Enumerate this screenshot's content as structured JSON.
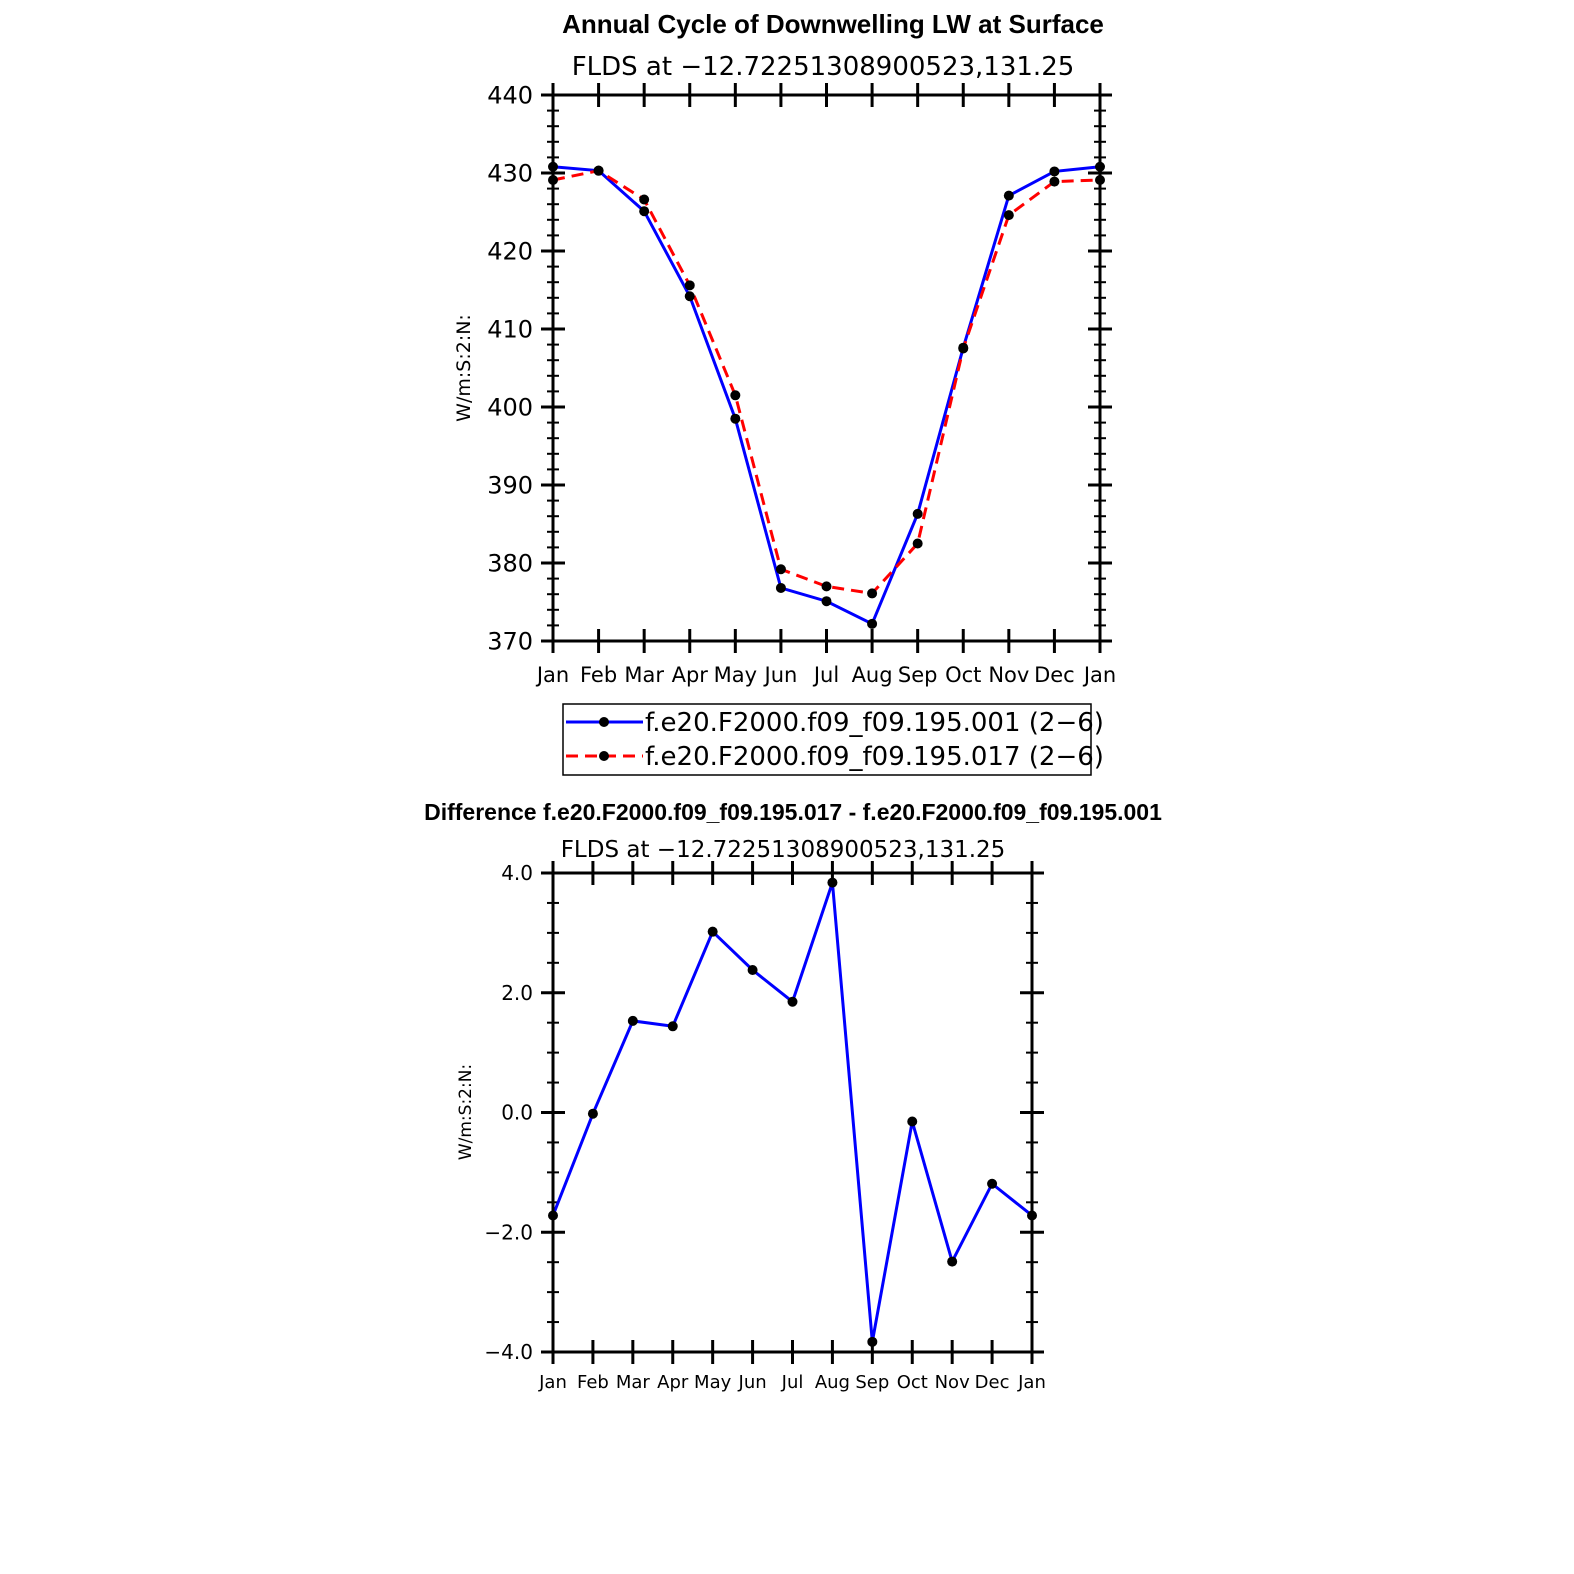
{
  "chart_data": [
    {
      "type": "line",
      "title": "Annual Cycle of Downwelling LW at Surface",
      "subtitle": "FLDS at −12.72251308900523,131.25",
      "ylabel": "W/m:S:2:N:",
      "xlabel": "",
      "ylim": [
        370,
        440
      ],
      "yticks": [
        "370",
        "380",
        "390",
        "400",
        "410",
        "420",
        "430",
        "440"
      ],
      "categories": [
        "Jan",
        "Feb",
        "Mar",
        "Apr",
        "May",
        "Jun",
        "Jul",
        "Aug",
        "Sep",
        "Oct",
        "Nov",
        "Dec",
        "Jan"
      ],
      "grid": false,
      "legend_position": "bottom",
      "series": [
        {
          "name": "f.e20.F2000.f09_f09.195.001 (2−6)",
          "color": "#0000ff",
          "dash": "solid",
          "values": [
            430.8,
            430.3,
            425.1,
            414.2,
            398.5,
            376.8,
            375.1,
            372.2,
            386.3,
            407.6,
            427.1,
            430.2,
            430.8
          ]
        },
        {
          "name": "f.e20.F2000.f09_f09.195.017 (2−6)",
          "color": "#ff0000",
          "dash": "dashed",
          "values": [
            429.1,
            430.3,
            426.6,
            415.6,
            401.5,
            379.2,
            377.0,
            376.1,
            382.5,
            407.5,
            424.6,
            428.9,
            429.1
          ]
        }
      ]
    },
    {
      "type": "line",
      "title": "Difference f.e20.F2000.f09_f09.195.017 - f.e20.F2000.f09_f09.195.001",
      "subtitle": "FLDS at −12.72251308900523,131.25",
      "ylabel": "W/m:S:2:N:",
      "xlabel": "",
      "ylim": [
        -4.0,
        4.0
      ],
      "yticks": [
        "−4.0",
        "−2.0",
        "0.0",
        "2.0",
        "4.0"
      ],
      "categories": [
        "Jan",
        "Feb",
        "Mar",
        "Apr",
        "May",
        "Jun",
        "Jul",
        "Aug",
        "Sep",
        "Oct",
        "Nov",
        "Dec",
        "Jan"
      ],
      "grid": false,
      "series": [
        {
          "color": "#0000ff",
          "dash": "solid",
          "values": [
            -1.72,
            -0.02,
            1.53,
            1.44,
            3.02,
            2.38,
            1.85,
            3.84,
            -3.83,
            -0.15,
            -2.49,
            -1.19,
            -1.72
          ]
        }
      ]
    }
  ]
}
